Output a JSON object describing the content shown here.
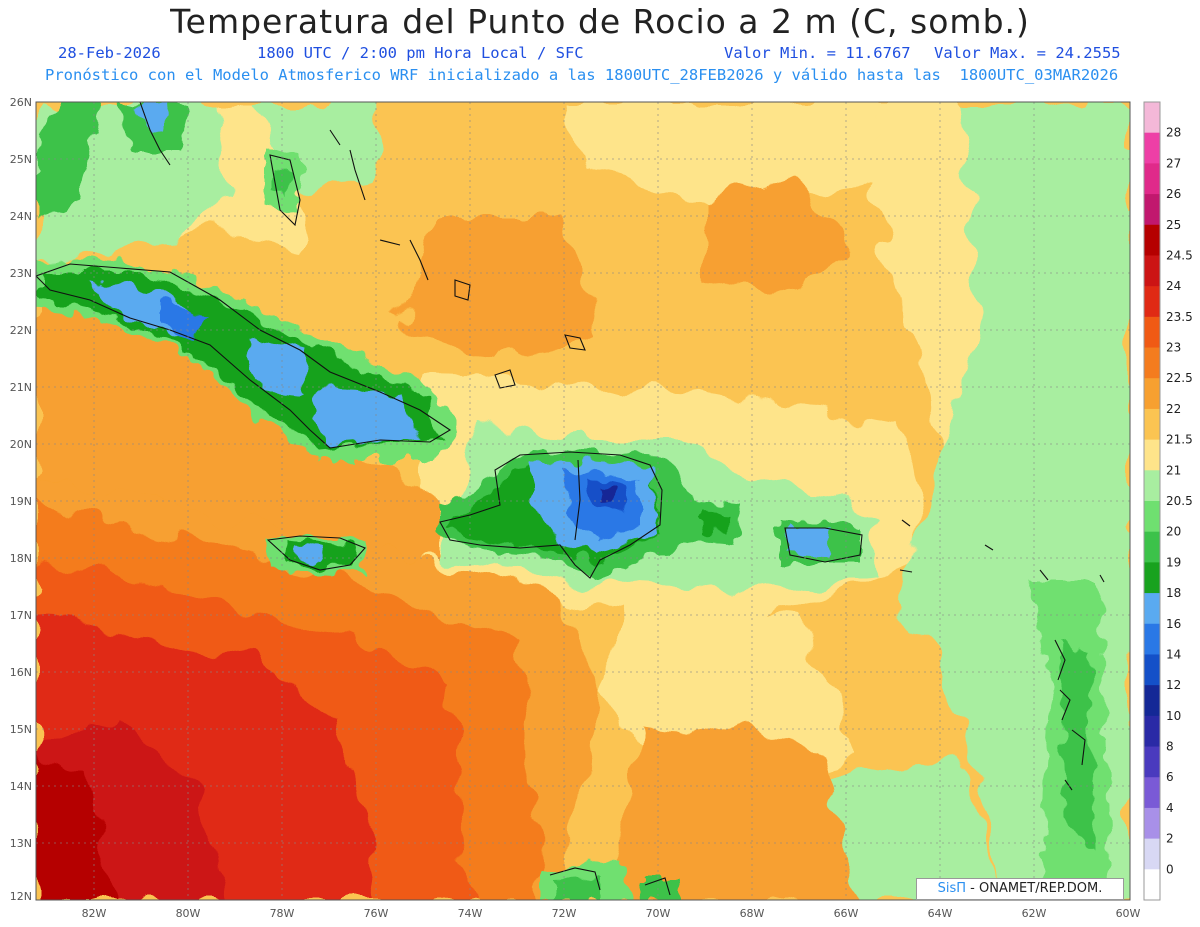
{
  "header": {
    "title": "Temperatura del Punto de Rocio a 2 m (C, somb.)",
    "date": "28-Feb-2026",
    "time": "1800 UTC / 2:00 pm Hora Local / SFC",
    "min": "Valor Min. = 11.6767",
    "max": "Valor Max. = 24.2555",
    "model": "Pronóstico con el Modelo Atmosferico WRF inicializado a las 1800UTC_28FEB2026 y válido hasta las  1800UTC_03MAR2026"
  },
  "map": {
    "lon_ticks": [
      "82W",
      "80W",
      "78W",
      "76W",
      "74W",
      "72W",
      "70W",
      "68W",
      "66W",
      "64W",
      "62W",
      "60W"
    ],
    "lat_ticks": [
      "26N",
      "25N",
      "24N",
      "23N",
      "22N",
      "21N",
      "20N",
      "19N",
      "18N",
      "17N",
      "16N",
      "15N",
      "14N",
      "13N",
      "12N"
    ],
    "lon_range": [
      -83.2,
      -60
    ],
    "lat_range": [
      12,
      26
    ]
  },
  "colorbar": {
    "levels": [
      "28",
      "27",
      "26",
      "25",
      "24.5",
      "24",
      "23.5",
      "23",
      "22.5",
      "22",
      "21.5",
      "21",
      "20.5",
      "20",
      "19",
      "18",
      "16",
      "14",
      "12",
      "10",
      "8",
      "6",
      "4",
      "2",
      "0"
    ],
    "colors": [
      "#f4b8d8",
      "#ee3fa6",
      "#e02a8a",
      "#c1186e",
      "#b50000",
      "#cc1414",
      "#e02a14",
      "#f05a14",
      "#f47c1e",
      "#f7a030",
      "#fbc452",
      "#fee48a",
      "#a8eea0",
      "#6fe070",
      "#3cc24a",
      "#18a21e",
      "#5aaaf0",
      "#2a78e6",
      "#1450c8",
      "#142896",
      "#2a2aa6",
      "#4a3abe",
      "#7a5ad6",
      "#a890e8",
      "#d8d8f4",
      "#ffffff"
    ]
  },
  "credit": {
    "brand": "SisΠ",
    "text": " - ONAMET/REP.DOM."
  }
}
